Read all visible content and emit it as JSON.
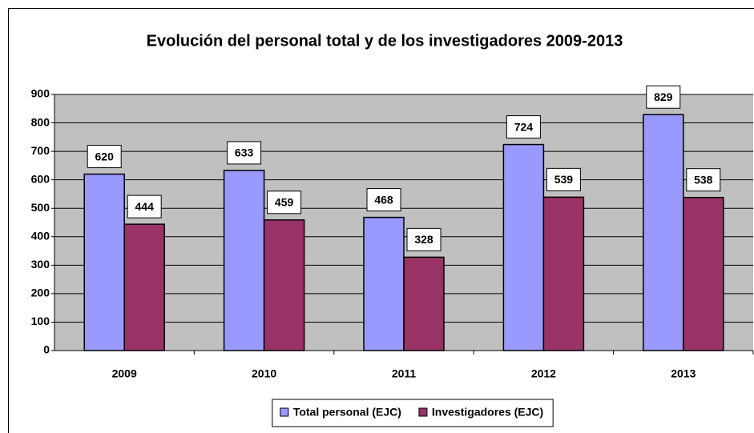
{
  "chart_data": {
    "type": "bar",
    "title": "Evolución del personal total y de los investigadores 2009-2013",
    "categories": [
      "2009",
      "2010",
      "2011",
      "2012",
      "2013"
    ],
    "series": [
      {
        "name": "Total personal (EJC)",
        "color": "#9999ff",
        "values": [
          620,
          633,
          468,
          724,
          829
        ]
      },
      {
        "name": "Investigadores (EJC)",
        "color": "#993366",
        "values": [
          444,
          459,
          328,
          539,
          538
        ]
      }
    ],
    "ylim": [
      0,
      900
    ],
    "yticks": [
      0,
      100,
      200,
      300,
      400,
      500,
      600,
      700,
      800,
      900
    ],
    "grid": true,
    "legend": "bottom"
  }
}
